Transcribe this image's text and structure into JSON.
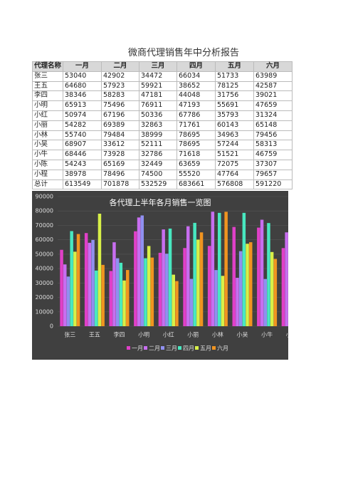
{
  "title": "微商代理销售年中分析报告",
  "table": {
    "header": [
      "代理名称",
      "一月",
      "二月",
      "三月",
      "四月",
      "五月",
      "六月"
    ],
    "rows": [
      [
        "张三",
        53040,
        42902,
        34472,
        66034,
        51733,
        63989
      ],
      [
        "王五",
        64680,
        57923,
        59921,
        38652,
        78125,
        42587
      ],
      [
        "李四",
        38346,
        58283,
        47181,
        44048,
        31756,
        39021
      ],
      [
        "小明",
        65913,
        75496,
        76911,
        47193,
        55691,
        47659
      ],
      [
        "小红",
        50974,
        67196,
        50336,
        67786,
        35793,
        31324
      ],
      [
        "小丽",
        54282,
        69389,
        32863,
        71761,
        60143,
        65148
      ],
      [
        "小林",
        55740,
        79484,
        38999,
        78695,
        34963,
        79456
      ],
      [
        "小吴",
        68907,
        33612,
        52111,
        78695,
        57244,
        58313
      ],
      [
        "小牛",
        68446,
        73928,
        32786,
        71618,
        51521,
        46759
      ],
      [
        "小陈",
        54243,
        65169,
        32449,
        63659,
        72075,
        37307
      ],
      [
        "小程",
        38978,
        78496,
        74500,
        55520,
        47764,
        79657
      ]
    ],
    "total": [
      "总计",
      613549,
      701878,
      532529,
      683661,
      576808,
      591220
    ]
  },
  "chart": {
    "title": "各代理上半年各月销售一览图",
    "ylim": [
      0,
      90000
    ],
    "yticks": [
      0,
      10000,
      20000,
      30000,
      40000,
      50000,
      60000,
      70000,
      80000,
      90000
    ],
    "colors": [
      "#e040c8",
      "#c86ef0",
      "#9090f0",
      "#48e8c0",
      "#d8f048",
      "#f09420"
    ]
  }
}
